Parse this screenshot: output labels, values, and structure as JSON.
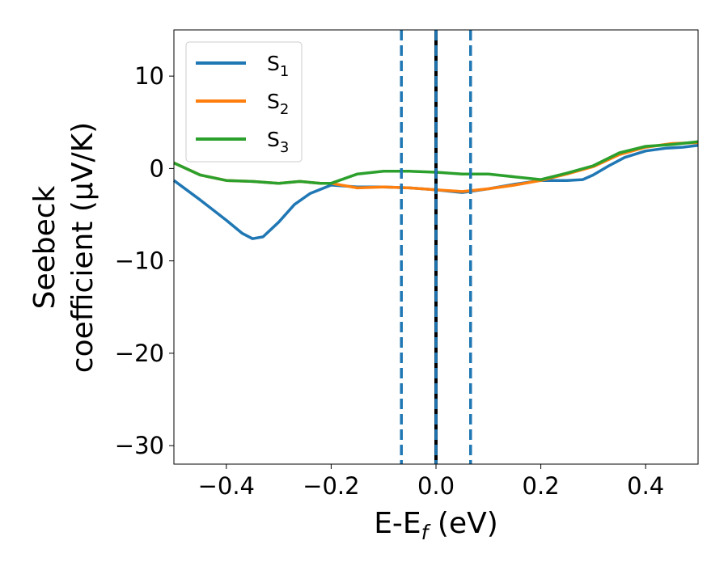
{
  "chart_data": {
    "type": "line",
    "title": "",
    "xlabel": {
      "main": "E-E",
      "sub": "f",
      "unit": " (eV)"
    },
    "ylabel": {
      "line1": "Seebeck",
      "line2": "coefficient  (μV/K)"
    },
    "xlim": [
      -0.5,
      0.5
    ],
    "ylim": [
      -32,
      15
    ],
    "xticks": [
      {
        "value": -0.4,
        "label": "−0.4"
      },
      {
        "value": -0.2,
        "label": "−0.2"
      },
      {
        "value": 0.0,
        "label": "0.0"
      },
      {
        "value": 0.2,
        "label": "0.2"
      },
      {
        "value": 0.4,
        "label": "0.4"
      }
    ],
    "yticks": [
      {
        "value": 10,
        "label": "10"
      },
      {
        "value": 0,
        "label": "0"
      },
      {
        "value": -10,
        "label": "−10"
      },
      {
        "value": -20,
        "label": "−20"
      },
      {
        "value": -30,
        "label": "−30"
      }
    ],
    "grid": false,
    "legend": {
      "position": "top-left"
    },
    "series": [
      {
        "name": "S",
        "sub": "1",
        "color": "#1f77b4",
        "x": [
          -0.5,
          -0.45,
          -0.4,
          -0.37,
          -0.35,
          -0.33,
          -0.3,
          -0.27,
          -0.24,
          -0.2,
          -0.15,
          -0.1,
          -0.05,
          0.0,
          0.05,
          0.1,
          0.15,
          0.2,
          0.25,
          0.28,
          0.3,
          0.33,
          0.36,
          0.4,
          0.44,
          0.47,
          0.5
        ],
        "y": [
          -1.3,
          -3.4,
          -5.6,
          -7.0,
          -7.6,
          -7.4,
          -5.8,
          -3.9,
          -2.7,
          -1.8,
          -2.0,
          -2.0,
          -2.1,
          -2.3,
          -2.6,
          -2.2,
          -1.7,
          -1.3,
          -1.3,
          -1.2,
          -0.7,
          0.3,
          1.2,
          1.9,
          2.2,
          2.3,
          2.5
        ]
      },
      {
        "name": "S",
        "sub": "2",
        "color": "#ff7f0e",
        "x": [
          -0.5,
          -0.45,
          -0.4,
          -0.35,
          -0.3,
          -0.26,
          -0.22,
          -0.2,
          -0.15,
          -0.1,
          -0.05,
          0.0,
          0.05,
          0.1,
          0.15,
          0.2,
          0.25,
          0.3,
          0.35,
          0.4,
          0.45,
          0.5
        ],
        "y": [
          0.6,
          -0.7,
          -1.3,
          -1.4,
          -1.6,
          -1.4,
          -1.6,
          -1.6,
          -2.1,
          -2.0,
          -2.1,
          -2.3,
          -2.5,
          -2.2,
          -1.8,
          -1.3,
          -0.6,
          0.2,
          1.5,
          2.3,
          2.7,
          2.8
        ]
      },
      {
        "name": "S",
        "sub": "3",
        "color": "#2ca02c",
        "x": [
          -0.5,
          -0.45,
          -0.4,
          -0.35,
          -0.3,
          -0.26,
          -0.22,
          -0.2,
          -0.15,
          -0.1,
          -0.05,
          0.0,
          0.05,
          0.1,
          0.15,
          0.2,
          0.25,
          0.3,
          0.35,
          0.4,
          0.45,
          0.5
        ],
        "y": [
          0.6,
          -0.7,
          -1.3,
          -1.4,
          -1.6,
          -1.4,
          -1.6,
          -1.6,
          -0.6,
          -0.3,
          -0.3,
          -0.4,
          -0.6,
          -0.6,
          -0.9,
          -1.2,
          -0.5,
          0.3,
          1.7,
          2.4,
          2.6,
          2.9
        ]
      }
    ],
    "vlines": [
      {
        "x": -0.066,
        "style": "dashed",
        "color": "#1f77b4"
      },
      {
        "x": 0.0,
        "style": "solid",
        "color": "#000000"
      },
      {
        "x": 0.0,
        "style": "dashed",
        "color": "#1f77b4"
      },
      {
        "x": 0.066,
        "style": "dashed",
        "color": "#1f77b4"
      }
    ]
  }
}
